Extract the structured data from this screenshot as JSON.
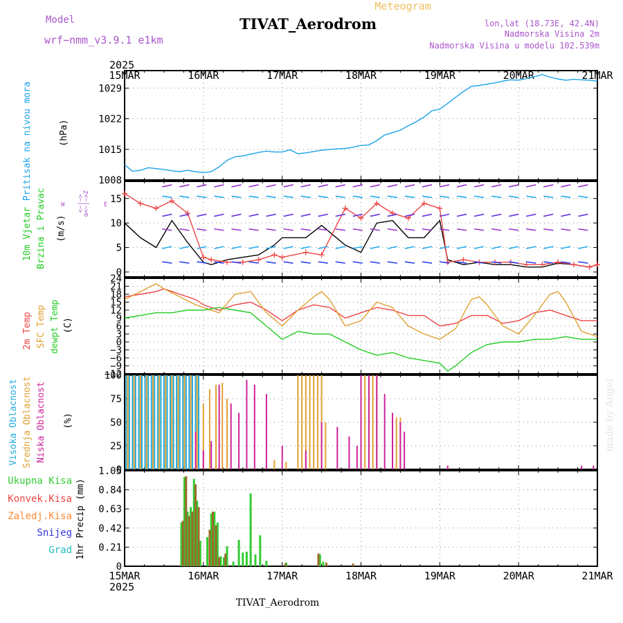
{
  "header": {
    "model_label": "Model",
    "model_name": "wrf−nmm_v3.9.1  e1km",
    "title": "TIVAT_Aerodrom",
    "subtitle": "Meteogram",
    "lonlat": "lon,lat (18.73E, 42.4N)",
    "elev_station": "Nadmorska Visina 2m",
    "elev_model": "Nadmorska Visina u modelu 102.539m",
    "year_top": "2025",
    "year_bottom": "2025",
    "footer": "TIVAT_Aerodrom",
    "watermark": "made by Angel"
  },
  "time_axis": {
    "labels": [
      "15MAR",
      "16MAR",
      "17MAR",
      "18MAR",
      "19MAR",
      "20MAR",
      "21MAR"
    ],
    "start_day": 15,
    "end_day": 21
  },
  "colors": {
    "pressure": "#1aa3e8",
    "temp2m": "#ee4444",
    "sfc": "#e0a030",
    "dew": "#22cc22",
    "wind_speed": "#000000",
    "gust": "#ee4444",
    "high_cloud": "#22aadd",
    "mid_cloud": "#e0a030",
    "low_cloud": "#cc2299",
    "precip_total": "#33cc33",
    "precip_conv": "#9a6a2a",
    "frame": "#000000"
  },
  "chart_data": [
    {
      "type": "line",
      "name": "pressure",
      "ylabel_left": "Pritisak na nivou mora",
      "ylabel_unit": "(hPa)",
      "ylim": [
        1008,
        1033
      ],
      "yticks": [
        1008,
        1015,
        1022,
        1029
      ],
      "grid": true,
      "series": [
        {
          "x": [
            15.0,
            15.1,
            15.2,
            15.3,
            15.4,
            15.5,
            15.6,
            15.7,
            15.8,
            15.9,
            16.0,
            16.1,
            16.2,
            16.3,
            16.4,
            16.5,
            16.6,
            16.7,
            16.8,
            16.9,
            17.0,
            17.1,
            17.2,
            17.3,
            17.4,
            17.5,
            17.6,
            17.7,
            17.8,
            17.9,
            18.0,
            18.1,
            18.2,
            18.3,
            18.4,
            18.5,
            18.6,
            18.7,
            18.8,
            18.9,
            19.0,
            19.1,
            19.2,
            19.3,
            19.4,
            19.5,
            19.6,
            19.7,
            19.8,
            19.9,
            20.0,
            20.1,
            20.2,
            20.3,
            20.4,
            20.5,
            20.6,
            20.7,
            20.8,
            20.9,
            21.0
          ],
          "values": [
            1011.5,
            1010.0,
            1010.2,
            1010.8,
            1010.6,
            1010.4,
            1010.1,
            1009.9,
            1010.2,
            1009.9,
            1009.7,
            1009.9,
            1011.0,
            1012.5,
            1013.3,
            1013.5,
            1013.9,
            1014.3,
            1014.6,
            1014.4,
            1014.4,
            1014.9,
            1014.0,
            1014.2,
            1014.5,
            1014.8,
            1015.0,
            1015.1,
            1015.2,
            1015.5,
            1015.9,
            1016.0,
            1017.0,
            1018.3,
            1018.8,
            1019.4,
            1020.4,
            1021.3,
            1022.4,
            1023.8,
            1024.2,
            1025.5,
            1026.9,
            1028.2,
            1029.4,
            1029.6,
            1029.9,
            1030.2,
            1030.6,
            1030.9,
            1030.8,
            1031.2,
            1031.6,
            1032.1,
            1031.5,
            1031.1,
            1030.8,
            1031.0,
            1030.9,
            1030.8,
            1030.6
          ],
          "color": "#1aa3e8"
        }
      ]
    },
    {
      "type": "line",
      "name": "wind",
      "ylabel_left": "10m Vjetar",
      "ylabel_left2": "Brzina i Pravac",
      "ylabel_unit": "(m/s)",
      "compass_labels": [
        "W",
        "<−|−>",
        "E",
        "α<−|−>Z"
      ],
      "ylim": [
        -1,
        18.5
      ],
      "yticks": [
        0,
        5,
        10,
        15
      ],
      "grid": true,
      "series": [
        {
          "name": "speed",
          "x": [
            15.0,
            15.2,
            15.4,
            15.6,
            15.8,
            16.0,
            16.1,
            16.3,
            16.5,
            16.7,
            16.9,
            17.0,
            17.3,
            17.5,
            17.8,
            18.0,
            18.2,
            18.4,
            18.6,
            18.8,
            19.0,
            19.1,
            19.3,
            19.5,
            19.7,
            19.9,
            20.1,
            20.3,
            20.5,
            20.7,
            20.9,
            21.0
          ],
          "values": [
            10.0,
            7.0,
            5.0,
            10.5,
            6.0,
            2.0,
            1.5,
            2.5,
            3.0,
            3.5,
            5.5,
            7.0,
            7.0,
            9.5,
            5.5,
            4.0,
            10.0,
            10.5,
            7.0,
            7.0,
            10.5,
            2.5,
            1.5,
            2.0,
            1.5,
            1.5,
            1.0,
            1.0,
            1.8,
            1.5,
            1.0,
            1.5
          ],
          "color": "#000000"
        },
        {
          "name": "gust",
          "x": [
            15.0,
            15.2,
            15.4,
            15.6,
            15.8,
            16.0,
            16.1,
            16.3,
            16.5,
            16.7,
            16.9,
            17.0,
            17.3,
            17.5,
            17.8,
            18.0,
            18.2,
            18.4,
            18.6,
            18.8,
            19.0,
            19.1,
            19.3,
            19.5,
            19.7,
            19.9,
            20.1,
            20.3,
            20.5,
            20.7,
            20.9,
            21.0
          ],
          "values": [
            16.0,
            14.0,
            13.0,
            14.5,
            12.0,
            3.0,
            2.5,
            2.0,
            2.0,
            2.5,
            3.5,
            3.0,
            4.0,
            3.5,
            13.0,
            11.0,
            14.0,
            12.0,
            11.0,
            14.0,
            13.0,
            2.0,
            2.5,
            2.0,
            2.0,
            2.0,
            1.5,
            1.5,
            2.0,
            1.5,
            1.0,
            1.5
          ],
          "color": "#ee4444"
        }
      ]
    },
    {
      "type": "line",
      "name": "temperature",
      "ylabel_left": "2m Temp",
      "ylabel_left2": "SFC Temp",
      "ylabel_left3": "dewpt Temp",
      "ylabel_unit": "(C)",
      "ylim": [
        -12,
        24
      ],
      "yticks": [
        -12,
        -9,
        -6,
        -3,
        0,
        3,
        6,
        9,
        12,
        15,
        18,
        21,
        24
      ],
      "grid": true,
      "series": [
        {
          "name": "2m Temp",
          "x": [
            15.0,
            15.2,
            15.4,
            15.5,
            15.7,
            15.9,
            16.0,
            16.2,
            16.4,
            16.6,
            16.8,
            17.0,
            17.2,
            17.4,
            17.6,
            17.8,
            18.0,
            18.2,
            18.4,
            18.6,
            18.8,
            19.0,
            19.2,
            19.4,
            19.6,
            19.8,
            20.0,
            20.2,
            20.4,
            20.6,
            20.8,
            21.0
          ],
          "values": [
            17,
            18,
            19,
            20,
            18,
            16,
            14,
            12,
            14,
            15,
            12,
            8,
            12,
            14,
            13,
            9,
            11,
            13,
            12,
            10,
            10,
            6,
            7,
            10,
            10,
            7,
            8,
            11,
            12,
            10,
            8,
            8
          ],
          "color": "#ee4444"
        },
        {
          "name": "SFC Temp",
          "x": [
            15.0,
            15.2,
            15.4,
            15.5,
            15.7,
            15.9,
            16.0,
            16.2,
            16.4,
            16.6,
            16.8,
            17.0,
            17.2,
            17.4,
            17.5,
            17.6,
            17.8,
            18.0,
            18.2,
            18.4,
            18.6,
            18.8,
            19.0,
            19.2,
            19.4,
            19.5,
            19.6,
            19.8,
            20.0,
            20.2,
            20.4,
            20.5,
            20.6,
            20.8,
            21.0
          ],
          "values": [
            16,
            19,
            22,
            20,
            17,
            14,
            13,
            11,
            18,
            19,
            11,
            6,
            12,
            17,
            19,
            16,
            6,
            8,
            15,
            13,
            6,
            3,
            1,
            5,
            16,
            17,
            14,
            6,
            3,
            10,
            18,
            19,
            15,
            4,
            2
          ],
          "color": "#e0a030"
        },
        {
          "name": "dewpt Temp",
          "x": [
            15.0,
            15.2,
            15.4,
            15.6,
            15.8,
            16.0,
            16.2,
            16.4,
            16.6,
            16.8,
            17.0,
            17.2,
            17.4,
            17.6,
            17.8,
            18.0,
            18.2,
            18.4,
            18.6,
            18.8,
            19.0,
            19.1,
            19.2,
            19.4,
            19.6,
            19.8,
            20.0,
            20.2,
            20.4,
            20.6,
            20.8,
            21.0
          ],
          "values": [
            9,
            10,
            11,
            11,
            12,
            12,
            13,
            12,
            11,
            6,
            1,
            4,
            3,
            3,
            0,
            -3,
            -5,
            -4,
            -6,
            -7,
            -8,
            -11,
            -9,
            -4,
            -1,
            0,
            0,
            1,
            1,
            2,
            1,
            1
          ],
          "color": "#22cc22"
        }
      ]
    },
    {
      "type": "bar",
      "name": "cloud_cover",
      "ylabel_left": "Visoka Oblacnost",
      "ylabel_left2": "Srednja Oblacnost",
      "ylabel_left3": "Niska Oblacnost",
      "ylabel_unit": "(%)",
      "ylim": [
        0,
        100
      ],
      "yticks": [
        0,
        25,
        50,
        75,
        100
      ],
      "grid": true,
      "series": [
        {
          "name": "Visoka Oblacnost",
          "x": [
            15.02,
            15.06,
            15.1,
            15.14,
            15.18,
            15.22,
            15.26,
            15.3,
            15.34,
            15.38,
            15.42,
            15.46,
            15.5,
            15.54,
            15.58,
            15.62,
            15.66,
            15.7,
            15.74,
            15.78,
            15.82,
            15.86,
            15.9,
            15.94
          ],
          "values": [
            100,
            100,
            100,
            100,
            100,
            100,
            100,
            100,
            100,
            100,
            100,
            100,
            100,
            100,
            100,
            100,
            100,
            100,
            100,
            100,
            100,
            100,
            100,
            100
          ],
          "color": "#22aadd"
        },
        {
          "name": "Srednja Oblacnost",
          "x": [
            15.04,
            15.12,
            15.2,
            15.28,
            15.36,
            15.44,
            15.52,
            15.6,
            15.68,
            15.76,
            15.84,
            15.92,
            16.0,
            16.08,
            16.16,
            16.24,
            16.3,
            16.9,
            17.05,
            17.2,
            17.25,
            17.3,
            17.35,
            17.4,
            17.45,
            17.5,
            17.55,
            18.0,
            18.05,
            18.1,
            18.15,
            18.2,
            18.4,
            18.45,
            18.5
          ],
          "values": [
            100,
            100,
            100,
            100,
            100,
            100,
            100,
            100,
            100,
            100,
            100,
            100,
            70,
            85,
            90,
            92,
            75,
            10,
            8,
            100,
            100,
            100,
            100,
            100,
            100,
            100,
            50,
            100,
            100,
            100,
            100,
            100,
            35,
            55,
            55
          ],
          "color": "#e0a030"
        },
        {
          "name": "Niska Oblacnost",
          "x": [
            15.9,
            16.0,
            16.1,
            16.2,
            16.35,
            16.45,
            16.55,
            16.65,
            16.8,
            17.0,
            17.3,
            17.5,
            17.7,
            17.85,
            17.95,
            18.0,
            18.1,
            18.2,
            18.3,
            18.4,
            18.5,
            18.55,
            19.1,
            20.8,
            20.95
          ],
          "values": [
            40,
            20,
            30,
            90,
            70,
            60,
            95,
            90,
            80,
            25,
            20,
            50,
            45,
            35,
            25,
            100,
            100,
            100,
            80,
            60,
            50,
            40,
            4,
            4,
            4
          ],
          "color": "#cc2299"
        }
      ]
    },
    {
      "type": "bar",
      "name": "precipitation",
      "ylabel_unit": "1hr Precip (mm)",
      "legend": [
        "Ukupna Kisa",
        "Konvek.Kisa",
        "Zaledj.Kisa",
        "Snijeg",
        "Grad"
      ],
      "legend_colors": [
        "#33cc33",
        "#ee4444",
        "#ff8833",
        "#3333dd",
        "#22bbbb"
      ],
      "ylim": [
        0,
        1.05
      ],
      "yticks": [
        0,
        0.21,
        0.42,
        0.63,
        0.84,
        1.05
      ],
      "ytick_labels": [
        "0",
        "0.21",
        "0.42",
        "0.63",
        "0.84",
        "1.05"
      ],
      "grid": true,
      "series": [
        {
          "name": "Ukupna Kisa",
          "x": [
            15.72,
            15.76,
            15.8,
            15.84,
            15.88,
            15.92,
            15.96,
            16.05,
            16.1,
            16.14,
            16.18,
            16.22,
            16.26,
            16.3,
            16.38,
            16.45,
            16.5,
            16.55,
            16.6,
            16.66,
            16.72,
            16.8,
            17.05,
            17.48,
            17.52
          ],
          "values": [
            0.48,
            0.98,
            0.6,
            0.65,
            0.96,
            0.72,
            0.28,
            0.32,
            0.58,
            0.6,
            0.48,
            0.11,
            0.1,
            0.22,
            0.05,
            0.29,
            0.15,
            0.16,
            0.8,
            0.13,
            0.34,
            0.06,
            0.04,
            0.13,
            0.05
          ],
          "color": "#33cc33"
        },
        {
          "name": "Konvek.Kisa",
          "x": [
            15.74,
            15.78,
            15.82,
            15.86,
            15.9,
            15.94,
            16.08,
            16.12,
            16.16,
            16.2,
            16.28,
            17.04,
            17.46,
            17.56,
            17.9
          ],
          "values": [
            0.5,
            0.99,
            0.55,
            0.6,
            0.9,
            0.65,
            0.4,
            0.6,
            0.45,
            0.1,
            0.14,
            0.03,
            0.14,
            0.04,
            0.03
          ],
          "color": "#9a6a2a"
        }
      ]
    }
  ]
}
